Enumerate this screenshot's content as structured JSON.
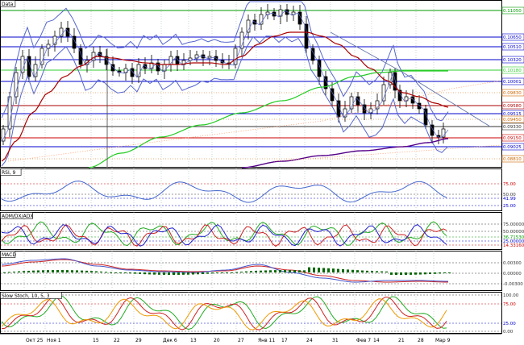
{
  "chart_data": {
    "type": "line",
    "panels": {
      "price": {
        "title": "Data",
        "levels": [
          {
            "value": "0.11050",
            "color": "#009900",
            "style": "solid"
          },
          {
            "value": "0.10650",
            "color": "#0000cc",
            "style": "solid"
          },
          {
            "value": "0.10510",
            "color": "#0000cc",
            "style": "solid"
          },
          {
            "value": "0.10320",
            "color": "#0000cc",
            "style": "solid"
          },
          {
            "value": "0.10180",
            "color": "#33cc33",
            "style": "solid"
          },
          {
            "value": "0.10001",
            "color": "#0000cc",
            "style": "solid"
          },
          {
            "value": "0.09830",
            "color": "#cc6600",
            "style": "dotted"
          },
          {
            "value": "0.09580",
            "color": "#aa0000",
            "style": "solid"
          },
          {
            "value": "0.09515",
            "color": "#0000cc",
            "style": "solid"
          },
          {
            "value": "0.09450",
            "color": "#cc6600",
            "style": "dotted"
          },
          {
            "value": "0.09330",
            "color": "#333333",
            "style": "solid"
          },
          {
            "value": "0.09150",
            "color": "#cc0000",
            "style": "solid"
          },
          {
            "value": "0.09025",
            "color": "#0000cc",
            "style": "solid"
          },
          {
            "value": "0.08810",
            "color": "#cc6600",
            "style": "dotted"
          }
        ]
      },
      "rsi": {
        "title": "RSI, 9",
        "axis_labels": [
          {
            "value": "75.00",
            "color": "#cc0000"
          },
          {
            "value": "50.00",
            "color": "#333333"
          },
          {
            "value": "41.99",
            "color": "#0000cc"
          },
          {
            "value": "25.00",
            "color": "#0000cc"
          }
        ]
      },
      "adx": {
        "title": "ADM/DX/ADX",
        "axis_labels": [
          {
            "value": "75.00000",
            "color": "#333333"
          },
          {
            "value": "50.00000",
            "color": "#333333"
          },
          {
            "value": "36.71530",
            "color": "#009900"
          },
          {
            "value": "25.00000",
            "color": "#0000cc"
          },
          {
            "value": "14.33160",
            "color": "#cc0000"
          }
        ]
      },
      "macd": {
        "title": "MACD",
        "axis_labels": [
          {
            "value": "0.00300",
            "color": "#333333"
          },
          {
            "value": "0.00000",
            "color": "#333333"
          },
          {
            "value": "-0.00300",
            "color": "#333333"
          }
        ]
      },
      "stoch": {
        "title": "Slow Stoch, 10, 5, 3",
        "axis_labels": [
          {
            "value": "100.00",
            "color": "#333333"
          },
          {
            "value": "75.00",
            "color": "#cc0000"
          },
          {
            "value": "25.00",
            "color": "#0000cc"
          },
          {
            "value": "0.00",
            "color": "#333333"
          }
        ]
      }
    },
    "x_tick_labels": [
      "Окт 25",
      "Ноя 1",
      "15",
      "22",
      "29",
      "Дек 6",
      "13",
      "20",
      "27",
      "Янв 11",
      "17",
      "24",
      "31",
      "Фев 7",
      "14",
      "21",
      "28",
      "Мар 9"
    ]
  }
}
